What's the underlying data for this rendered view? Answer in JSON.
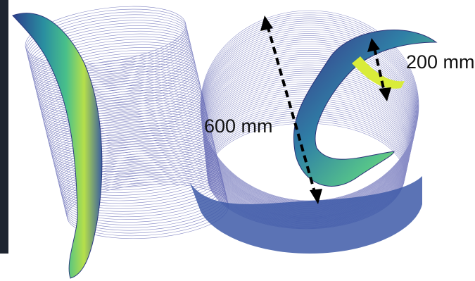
{
  "annotations": [
    {
      "text": "600 mm"
    },
    {
      "text": "200 mm"
    }
  ]
}
